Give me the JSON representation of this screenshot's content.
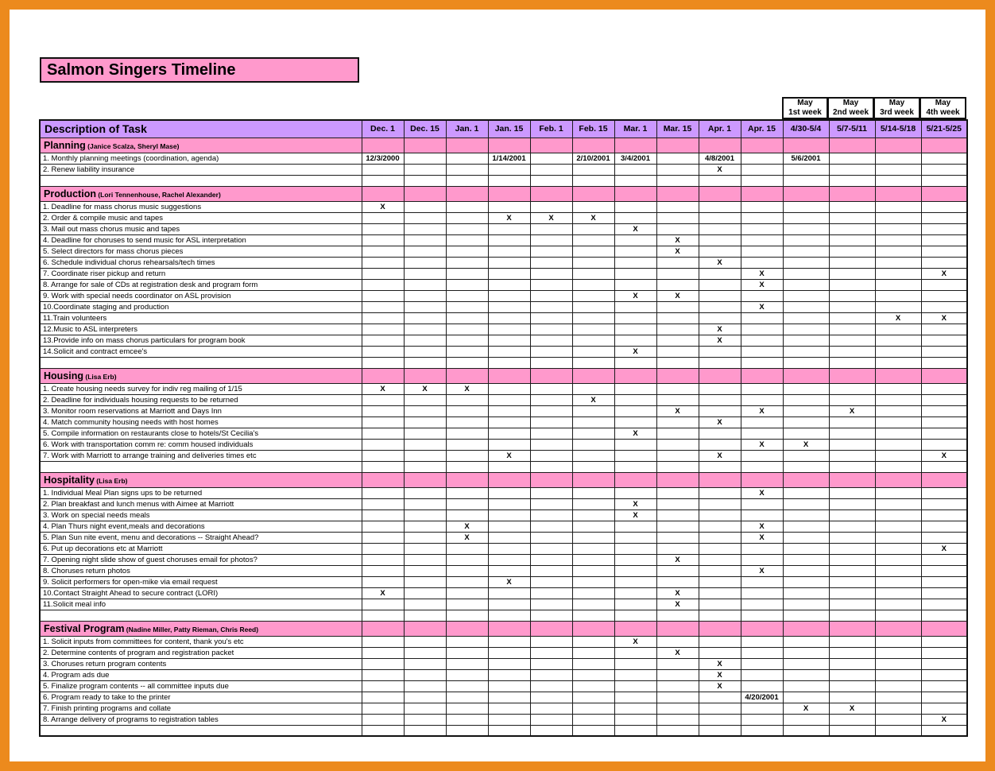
{
  "title": "Salmon Singers Timeline",
  "colors": {
    "frame_orange": "#EC8A1D",
    "section_pink": "#FF99CC",
    "header_purple": "#CC99FF",
    "grid_line": "#1c1c1c"
  },
  "table": {
    "description_header": "Description of Task",
    "may_headers": [
      {
        "top": "May",
        "bottom": "1st week"
      },
      {
        "top": "May",
        "bottom": "2nd week"
      },
      {
        "top": "May",
        "bottom": "3rd week"
      },
      {
        "top": "May",
        "bottom": "4th week"
      }
    ],
    "columns": [
      "Dec. 1",
      "Dec. 15",
      "Jan. 1",
      "Jan. 15",
      "Feb. 1",
      "Feb. 15",
      "Mar. 1",
      "Mar. 15",
      "Apr. 1",
      "Apr. 15",
      "4/30-5/4",
      "5/7-5/11",
      "5/14-5/18",
      "5/21-5/25"
    ],
    "sections": [
      {
        "name": "Planning",
        "members": "(Janice Scalza, Sheryl Mase)",
        "rows": [
          {
            "label": "1.  Monthly planning meetings (coordination, agenda)",
            "cells": {
              "0": "12/3/2000",
              "3": "1/14/2001",
              "5": "2/10/2001",
              "6": "3/4/2001",
              "8": "4/8/2001",
              "10": "5/6/2001"
            }
          },
          {
            "label": "2.  Renew liability insurance",
            "cells": {
              "8": "X"
            }
          }
        ]
      },
      {
        "name": "Production",
        "members": "(Lori Tennenhouse, Rachel Alexander)",
        "rows": [
          {
            "label": "1.  Deadline for mass chorus music suggestions",
            "cells": {
              "0": "X"
            }
          },
          {
            "label": "2.  Order & compile music and tapes",
            "cells": {
              "3": "X",
              "4": "X",
              "5": "X"
            }
          },
          {
            "label": "3.  Mail out mass chorus music and tapes",
            "cells": {
              "6": "X"
            }
          },
          {
            "label": "4.  Deadline for choruses to send music for ASL interpretation",
            "cells": {
              "7": "X"
            }
          },
          {
            "label": "5.  Select directors for mass chorus pieces",
            "cells": {
              "7": "X"
            }
          },
          {
            "label": "6.  Schedule individual chorus rehearsals/tech times",
            "cells": {
              "8": "X"
            }
          },
          {
            "label": "7.  Coordinate riser pickup and return",
            "cells": {
              "9": "X",
              "13": "X"
            }
          },
          {
            "label": "8.  Arrange for sale of CDs at registration desk and program form",
            "cells": {
              "9": "X"
            }
          },
          {
            "label": "9.  Work with special needs coordinator on ASL provision",
            "cells": {
              "6": "X",
              "7": "X"
            }
          },
          {
            "label": "10.Coordinate staging and production",
            "cells": {
              "9": "X"
            }
          },
          {
            "label": "11.Train volunteers",
            "cells": {
              "12": "X",
              "13": "X"
            }
          },
          {
            "label": "12.Music to ASL interpreters",
            "cells": {
              "8": "X"
            }
          },
          {
            "label": "13.Provide info on mass chorus particulars for program book",
            "cells": {
              "8": "X"
            }
          },
          {
            "label": "14.Solicit and contract emcee's",
            "cells": {
              "6": "X"
            }
          }
        ]
      },
      {
        "name": "Housing",
        "members": "(Lisa Erb)",
        "rows": [
          {
            "label": "1.  Create housing needs survey for indiv reg mailing of 1/15",
            "cells": {
              "0": "X",
              "1": "X",
              "2": "X"
            }
          },
          {
            "label": "2.  Deadline for individuals housing requests to be returned",
            "cells": {
              "5": "X"
            }
          },
          {
            "label": "3.  Monitor room reservations at Marriott and Days Inn",
            "cells": {
              "7": "X",
              "9": "X",
              "11": "X"
            }
          },
          {
            "label": "4.  Match community housing needs with host homes",
            "cells": {
              "8": "X"
            }
          },
          {
            "label": "5.  Compile information on restaurants close to hotels/St Cecilia's",
            "cells": {
              "6": "X"
            }
          },
          {
            "label": "6.  Work with transportation comm re: comm housed individuals",
            "cells": {
              "9": "X",
              "10": "X"
            }
          },
          {
            "label": "7.  Work with Marriott to arrange training and deliveries times etc",
            "cells": {
              "3": "X",
              "8": "X",
              "13": "X"
            }
          }
        ]
      },
      {
        "name": "Hospitality",
        "members": "(Lisa Erb)",
        "rows": [
          {
            "label": "1.  Individual Meal Plan signs ups to be returned",
            "cells": {
              "9": "X"
            }
          },
          {
            "label": "2.  Plan breakfast and lunch menus with Aimee at Marriott",
            "cells": {
              "6": "X"
            }
          },
          {
            "label": "3.  Work on special needs meals",
            "cells": {
              "6": "X"
            }
          },
          {
            "label": "4.  Plan Thurs night event,meals and decorations",
            "cells": {
              "2": "X",
              "9": "X"
            }
          },
          {
            "label": "5.  Plan Sun nite event, menu and decorations -- Straight Ahead?",
            "cells": {
              "2": "X",
              "9": "X"
            }
          },
          {
            "label": "6.  Put up decorations etc at Marriott",
            "cells": {
              "13": "X"
            }
          },
          {
            "label": "7.  Opening night slide show of guest choruses email for photos?",
            "cells": {
              "7": "X"
            }
          },
          {
            "label": "8.  Choruses return photos",
            "cells": {
              "9": "X"
            }
          },
          {
            "label": "9.  Solicit performers for open-mike via email request",
            "cells": {
              "3": "X"
            }
          },
          {
            "label": "10.Contact Straight Ahead to secure contract (LORI)",
            "cells": {
              "0": "X",
              "7": "X"
            }
          },
          {
            "label": "11.Solicit meal info",
            "cells": {
              "7": "X"
            }
          }
        ]
      },
      {
        "name": "Festival Program",
        "members": "(Nadine Miller, Patty Rieman, Chris Reed)",
        "rows": [
          {
            "label": "1.  Solicit inputs from committees for content, thank you's etc",
            "cells": {
              "6": "X"
            }
          },
          {
            "label": "2.  Determine contents of program and registration packet",
            "cells": {
              "7": "X"
            }
          },
          {
            "label": "3.  Choruses return program contents",
            "cells": {
              "8": "X"
            }
          },
          {
            "label": "4.  Program ads due",
            "cells": {
              "8": "X"
            }
          },
          {
            "label": "5.  Finalize program contents -- all committee inputs due",
            "cells": {
              "8": "X"
            }
          },
          {
            "label": "6.  Program ready to take to the printer",
            "cells": {
              "9": "4/20/2001"
            }
          },
          {
            "label": "7.  Finish printing programs and collate",
            "cells": {
              "10": "X",
              "11": "X"
            }
          },
          {
            "label": "8.  Arrange delivery of programs to registration tables",
            "cells": {
              "13": "X"
            }
          }
        ]
      }
    ]
  }
}
